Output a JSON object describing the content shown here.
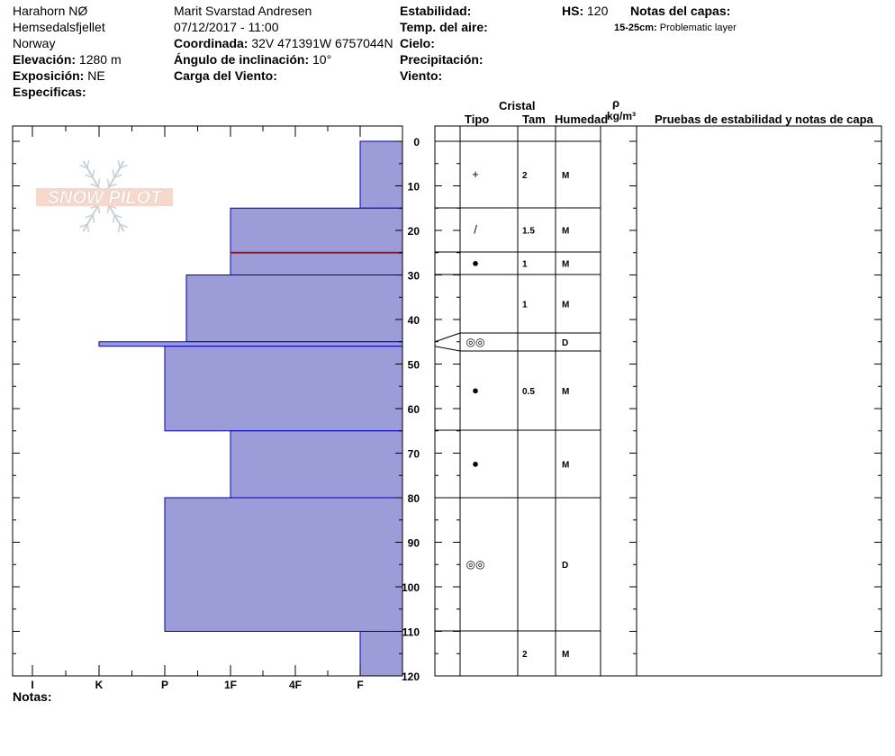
{
  "header": {
    "location": "Harahorn NØ",
    "area": "Hemsedalsfjellet",
    "country": "Norway",
    "elevation_label": "Elevación:",
    "elevation_value": "1280 m",
    "aspect_label": "Exposición:",
    "aspect_value": "NE",
    "specifics_label": "Especificas:",
    "observer": "Marit Svarstad Andresen",
    "datetime": "07/12/2017 - 11:00",
    "coord_label": "Coordinada:",
    "coord_value": "32V 471391W 6757044N",
    "incline_label": "Ángulo de inclinación:",
    "incline_value": "10°",
    "wind_load_label": "Carga del Viento:",
    "stability_label": "Estabilidad:",
    "air_temp_label": "Temp. del aire:",
    "sky_label": "Cielo:",
    "precip_label": "Precipitación:",
    "wind_label": "Viento:",
    "hs_label": "HS:",
    "hs_value": "120",
    "layer_notes_label": "Notas del capas:",
    "layer_note_range": "15-25cm:",
    "layer_note_text": "Problematic layer"
  },
  "columns": {
    "crystal": "Cristal",
    "type": "Tipo",
    "size": "Tam",
    "moisture": "Humedad",
    "rho": "ρ",
    "density_unit": "kg/m³",
    "tests": "Pruebas de estabilidad y notas de capa"
  },
  "notes_label": "Notas:",
  "logo_text": "SNOW PILOT",
  "colors": {
    "layer_fill": "#9c9cd8",
    "layer_edge": "#0000b4",
    "problem_line": "#8b1a2b"
  },
  "chart_data": {
    "type": "snow_profile",
    "depth_range": [
      0,
      120
    ],
    "depth_ticks": [
      0,
      10,
      20,
      30,
      40,
      50,
      60,
      70,
      80,
      90,
      100,
      110,
      120
    ],
    "hardness_scale": [
      "I",
      "K",
      "P",
      "1F",
      "4F",
      "F"
    ],
    "layers": [
      {
        "top": 0,
        "bottom": 15,
        "hardness": "F",
        "type": "+",
        "size": "2",
        "moisture": "M"
      },
      {
        "top": 15,
        "bottom": 25,
        "hardness": "1F",
        "type": "/",
        "size": "1.5",
        "moisture": "M"
      },
      {
        "top": 25,
        "bottom": 30,
        "hardness": "1F",
        "type": "●",
        "size": "1",
        "moisture": "M"
      },
      {
        "top": 30,
        "bottom": 45,
        "hardness": "P+",
        "type": "",
        "size": "1",
        "moisture": "M"
      },
      {
        "top": 45,
        "bottom": 46,
        "hardness": "K",
        "type": "◎◎",
        "size": "",
        "moisture": "D"
      },
      {
        "top": 46,
        "bottom": 65,
        "hardness": "P",
        "type": "●",
        "size": "0.5",
        "moisture": "M"
      },
      {
        "top": 65,
        "bottom": 80,
        "hardness": "1F",
        "type": "●",
        "size": "",
        "moisture": "M"
      },
      {
        "top": 80,
        "bottom": 110,
        "hardness": "P",
        "type": "◎◎",
        "size": "",
        "moisture": "D"
      },
      {
        "top": 110,
        "bottom": 120,
        "hardness": "F",
        "type": "",
        "size": "2",
        "moisture": "M"
      }
    ],
    "problem_layer_depth": 25
  }
}
